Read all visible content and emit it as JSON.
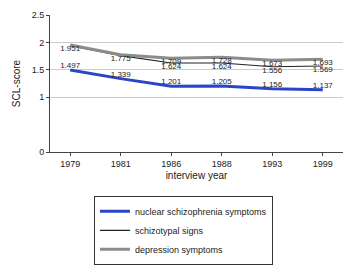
{
  "chart_data": {
    "type": "line",
    "x_label": "interview year",
    "y_label": "SCL-score",
    "categories": [
      "1979",
      "1981",
      "1986",
      "1988",
      "1993",
      "1999"
    ],
    "series": [
      {
        "name": "nuclear schizophrenia symptoms",
        "color": "#2b45c8",
        "values": [
          1.497,
          1.339,
          1.201,
          1.205,
          1.156,
          1.137
        ]
      },
      {
        "name": "schizotypal signs",
        "color": "#222222",
        "values": [
          1.94,
          1.76,
          1.624,
          1.624,
          1.556,
          1.569
        ],
        "value_labels": [
          null,
          null,
          "1.624",
          "1.624",
          "1.556",
          "1.569"
        ]
      },
      {
        "name": "depression symptoms",
        "color": "#8c8c8c",
        "values": [
          1.951,
          1.775,
          1.709,
          1.728,
          1.673,
          1.693
        ]
      }
    ],
    "ylim": [
      0,
      2.5
    ],
    "yticks": [
      0,
      1,
      1.5,
      2,
      2.5
    ],
    "grid": true,
    "legend": "bottom",
    "data_labels": true
  }
}
